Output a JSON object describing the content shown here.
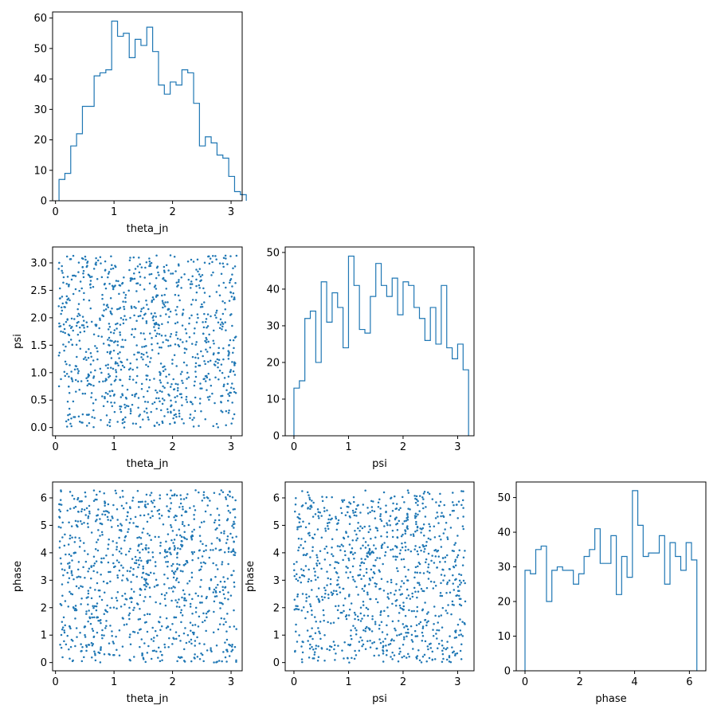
{
  "chart_data": [
    {
      "id": "theta_hist",
      "type": "histogram-step",
      "xlabel": "theta_jn",
      "xlim": [
        -0.05,
        3.19
      ],
      "ylim": [
        0,
        62
      ],
      "xticks": [
        0,
        1,
        2,
        3
      ],
      "yticks": [
        0,
        10,
        20,
        30,
        40,
        50,
        60
      ],
      "bin_start": 0.06,
      "bin_width": 0.1,
      "counts": [
        7,
        9,
        18,
        22,
        31,
        31,
        41,
        42,
        43,
        59,
        54,
        55,
        47,
        53,
        51,
        57,
        49,
        38,
        35,
        39,
        38,
        43,
        42,
        32,
        18,
        21,
        19,
        15,
        14,
        8,
        3,
        2
      ]
    },
    {
      "id": "theta_psi_scatter",
      "type": "scatter",
      "xlabel": "theta_jn",
      "ylabel": "psi",
      "xlim": [
        -0.05,
        3.19
      ],
      "ylim": [
        -0.15,
        3.29
      ],
      "xticks": [
        0,
        1,
        2,
        3
      ],
      "yticks": [
        "0.0",
        "0.5",
        "1.0",
        "1.5",
        "2.0",
        "2.5",
        "3.0"
      ],
      "n_points": 1000,
      "x_range": [
        0.05,
        3.1
      ],
      "y_range": [
        0.0,
        3.14
      ]
    },
    {
      "id": "psi_hist",
      "type": "histogram-step",
      "xlabel": "psi",
      "xlim": [
        -0.16,
        3.3
      ],
      "ylim": [
        0,
        51.5
      ],
      "xticks": [
        0,
        1,
        2,
        3
      ],
      "yticks": [
        0,
        10,
        20,
        30,
        40,
        50
      ],
      "bin_start": 0.0,
      "bin_width": 0.1,
      "counts": [
        13,
        15,
        32,
        34,
        20,
        42,
        31,
        39,
        35,
        24,
        49,
        41,
        29,
        28,
        38,
        47,
        41,
        38,
        43,
        33,
        42,
        41,
        35,
        32,
        26,
        35,
        25,
        41,
        24,
        21,
        25,
        18
      ]
    },
    {
      "id": "theta_phase_scatter",
      "type": "scatter",
      "xlabel": "theta_jn",
      "ylabel": "phase",
      "xlim": [
        -0.05,
        3.19
      ],
      "ylim": [
        -0.3,
        6.58
      ],
      "xticks": [
        0,
        1,
        2,
        3
      ],
      "yticks": [
        0,
        1,
        2,
        3,
        4,
        5,
        6
      ],
      "n_points": 1000,
      "x_range": [
        0.05,
        3.1
      ],
      "y_range": [
        0.0,
        6.28
      ]
    },
    {
      "id": "psi_phase_scatter",
      "type": "scatter",
      "xlabel": "psi",
      "ylabel": "phase",
      "xlim": [
        -0.16,
        3.3
      ],
      "ylim": [
        -0.3,
        6.58
      ],
      "xticks": [
        0,
        1,
        2,
        3
      ],
      "yticks": [
        0,
        1,
        2,
        3,
        4,
        5,
        6
      ],
      "n_points": 1000,
      "x_range": [
        0.0,
        3.14
      ],
      "y_range": [
        0.0,
        6.28
      ]
    },
    {
      "id": "phase_hist",
      "type": "histogram-step",
      "xlabel": "phase",
      "xlim": [
        -0.32,
        6.6
      ],
      "ylim": [
        0,
        54.5
      ],
      "xticks": [
        0,
        2,
        4,
        6
      ],
      "yticks": [
        0,
        10,
        20,
        30,
        40,
        50
      ],
      "bin_start": 0.0,
      "bin_width": 0.196,
      "counts": [
        29,
        28,
        35,
        36,
        20,
        29,
        30,
        29,
        29,
        25,
        28,
        33,
        35,
        41,
        31,
        31,
        39,
        22,
        33,
        27,
        52,
        42,
        33,
        34,
        34,
        39,
        25,
        37,
        33,
        29,
        37,
        32
      ]
    }
  ]
}
